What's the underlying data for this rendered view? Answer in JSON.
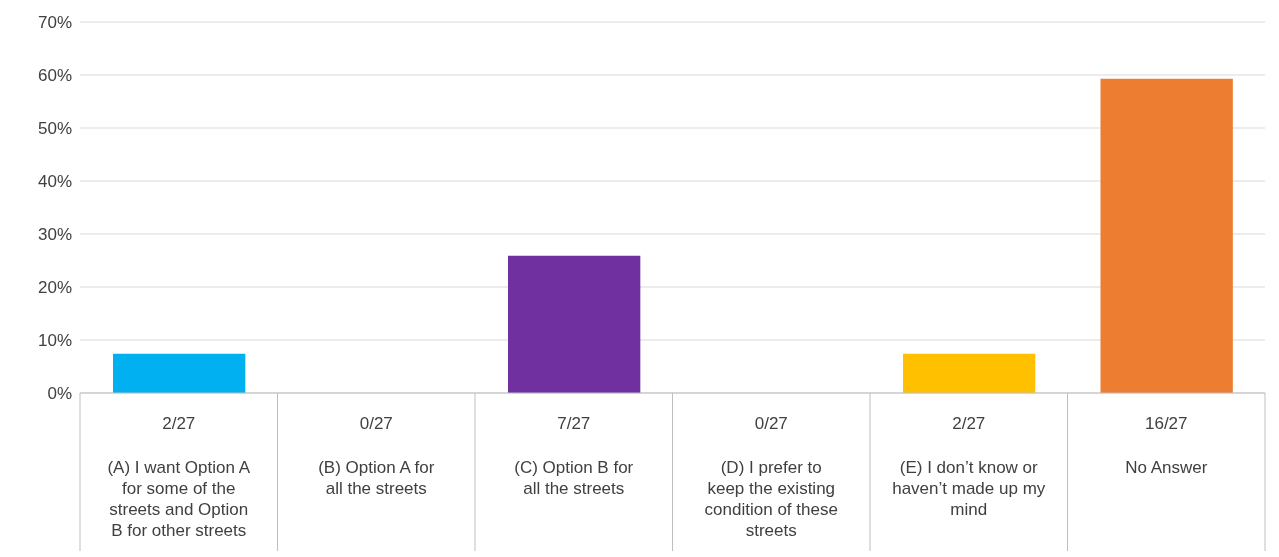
{
  "chart_data": {
    "type": "bar",
    "categories": [
      "(A) I want Option A for some of the streets and Option B for other streets",
      "(B) Option A for all the streets",
      "(C) Option B for all the streets",
      "(D) I prefer to keep the existing condition of these streets",
      "(E) I don’t know or haven’t made up my mind",
      "No Answer"
    ],
    "values": [
      7.4,
      0,
      25.9,
      0,
      7.4,
      59.3
    ],
    "value_labels": [
      "2/27",
      "0/27",
      "7/27",
      "0/27",
      "2/27",
      "16/27"
    ],
    "colors": [
      "#00b0f0",
      null,
      "#7030a0",
      null,
      "#ffc000",
      "#ed7d31"
    ],
    "ylim": [
      0,
      70
    ],
    "yticks": [
      {
        "value": 0,
        "label": "0%"
      },
      {
        "value": 10,
        "label": "10%"
      },
      {
        "value": 20,
        "label": "20%"
      },
      {
        "value": 30,
        "label": "30%"
      },
      {
        "value": 40,
        "label": "40%"
      },
      {
        "value": 50,
        "label": "50%"
      },
      {
        "value": 60,
        "label": "60%"
      },
      {
        "value": 70,
        "label": "70%"
      }
    ],
    "grid": "y"
  }
}
